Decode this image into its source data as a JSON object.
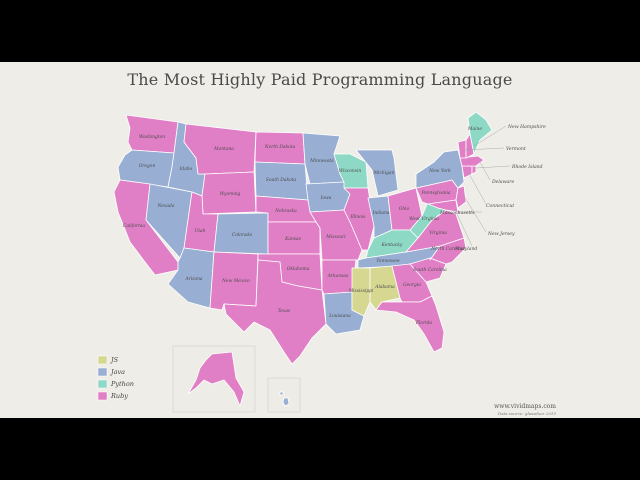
{
  "title": "The Most Highly Paid Programming Language",
  "colors": {
    "js": "#d6d891",
    "java": "#98aed3",
    "python": "#8ed9c5",
    "ruby": "#e07fc6"
  },
  "legend": [
    {
      "key": "js",
      "label": "JS"
    },
    {
      "key": "java",
      "label": "Java"
    },
    {
      "key": "python",
      "label": "Python"
    },
    {
      "key": "ruby",
      "label": "Ruby"
    }
  ],
  "states": {
    "washington": {
      "label": "Washington",
      "lang": "ruby"
    },
    "oregon": {
      "label": "Oregon",
      "lang": "java"
    },
    "california": {
      "label": "California",
      "lang": "ruby"
    },
    "nevada": {
      "label": "Nevada",
      "lang": "java"
    },
    "idaho": {
      "label": "Idaho",
      "lang": "java"
    },
    "montana": {
      "label": "Montana",
      "lang": "ruby"
    },
    "wyoming": {
      "label": "Wyoming",
      "lang": "ruby"
    },
    "utah": {
      "label": "Utah",
      "lang": "ruby"
    },
    "colorado": {
      "label": "Colorado",
      "lang": "java"
    },
    "arizona": {
      "label": "Arizona",
      "lang": "java"
    },
    "new_mexico": {
      "label": "New Mexico",
      "lang": "ruby"
    },
    "north_dakota": {
      "label": "North Dakota",
      "lang": "ruby"
    },
    "south_dakota": {
      "label": "South Dakota",
      "lang": "java"
    },
    "nebraska": {
      "label": "Nebraska",
      "lang": "ruby"
    },
    "kansas": {
      "label": "Kansas",
      "lang": "ruby"
    },
    "oklahoma": {
      "label": "Oklahoma",
      "lang": "ruby"
    },
    "texas": {
      "label": "Texas",
      "lang": "ruby"
    },
    "minnesota": {
      "label": "Minnesota",
      "lang": "java"
    },
    "iowa": {
      "label": "Iowa",
      "lang": "java"
    },
    "missouri": {
      "label": "Missouri",
      "lang": "ruby"
    },
    "arkansas": {
      "label": "Arkansas",
      "lang": "ruby"
    },
    "louisiana": {
      "label": "Louisiana",
      "lang": "java"
    },
    "wisconsin": {
      "label": "Wisconsin",
      "lang": "python"
    },
    "illinois": {
      "label": "Illinois",
      "lang": "ruby"
    },
    "michigan": {
      "label": "Michigan",
      "lang": "java"
    },
    "indiana": {
      "label": "Indiana",
      "lang": "java"
    },
    "ohio": {
      "label": "Ohio",
      "lang": "ruby"
    },
    "kentucky": {
      "label": "Kentucky",
      "lang": "python"
    },
    "tennessee": {
      "label": "Tennessee",
      "lang": "java"
    },
    "mississippi": {
      "label": "Mississippi",
      "lang": "js"
    },
    "alabama": {
      "label": "Alabama",
      "lang": "js"
    },
    "georgia": {
      "label": "Georgia",
      "lang": "ruby"
    },
    "florida": {
      "label": "Florida",
      "lang": "ruby"
    },
    "south_carolina": {
      "label": "South Carolina",
      "lang": "ruby"
    },
    "north_carolina": {
      "label": "North Carolina",
      "lang": "ruby"
    },
    "virginia": {
      "label": "Virginia",
      "lang": "ruby"
    },
    "west_virginia": {
      "label": "West Virginia",
      "lang": "python"
    },
    "pennsylvania": {
      "label": "Pennsylvania",
      "lang": "ruby"
    },
    "new_york": {
      "label": "New York",
      "lang": "java"
    },
    "new_jersey": {
      "label": "New Jersey",
      "lang": "ruby"
    },
    "maryland": {
      "label": "Maryland",
      "lang": "ruby"
    },
    "delaware": {
      "label": "Delaware",
      "lang": "ruby"
    },
    "connecticut": {
      "label": "Connecticut",
      "lang": "ruby"
    },
    "massachusetts": {
      "label": "Massachusetts",
      "lang": "ruby"
    },
    "rhode_island": {
      "label": "Rhode Island",
      "lang": "ruby"
    },
    "vermont": {
      "label": "Vermont",
      "lang": "ruby"
    },
    "new_hampshire": {
      "label": "New Hampshire",
      "lang": "ruby"
    },
    "maine": {
      "label": "Maine",
      "lang": "python"
    },
    "alaska": {
      "label": "",
      "lang": "ruby"
    },
    "hawaii": {
      "label": "",
      "lang": "java"
    }
  },
  "credit": {
    "site": "www.vividmaps.com",
    "source": "Data source: glassdoor 2015"
  }
}
